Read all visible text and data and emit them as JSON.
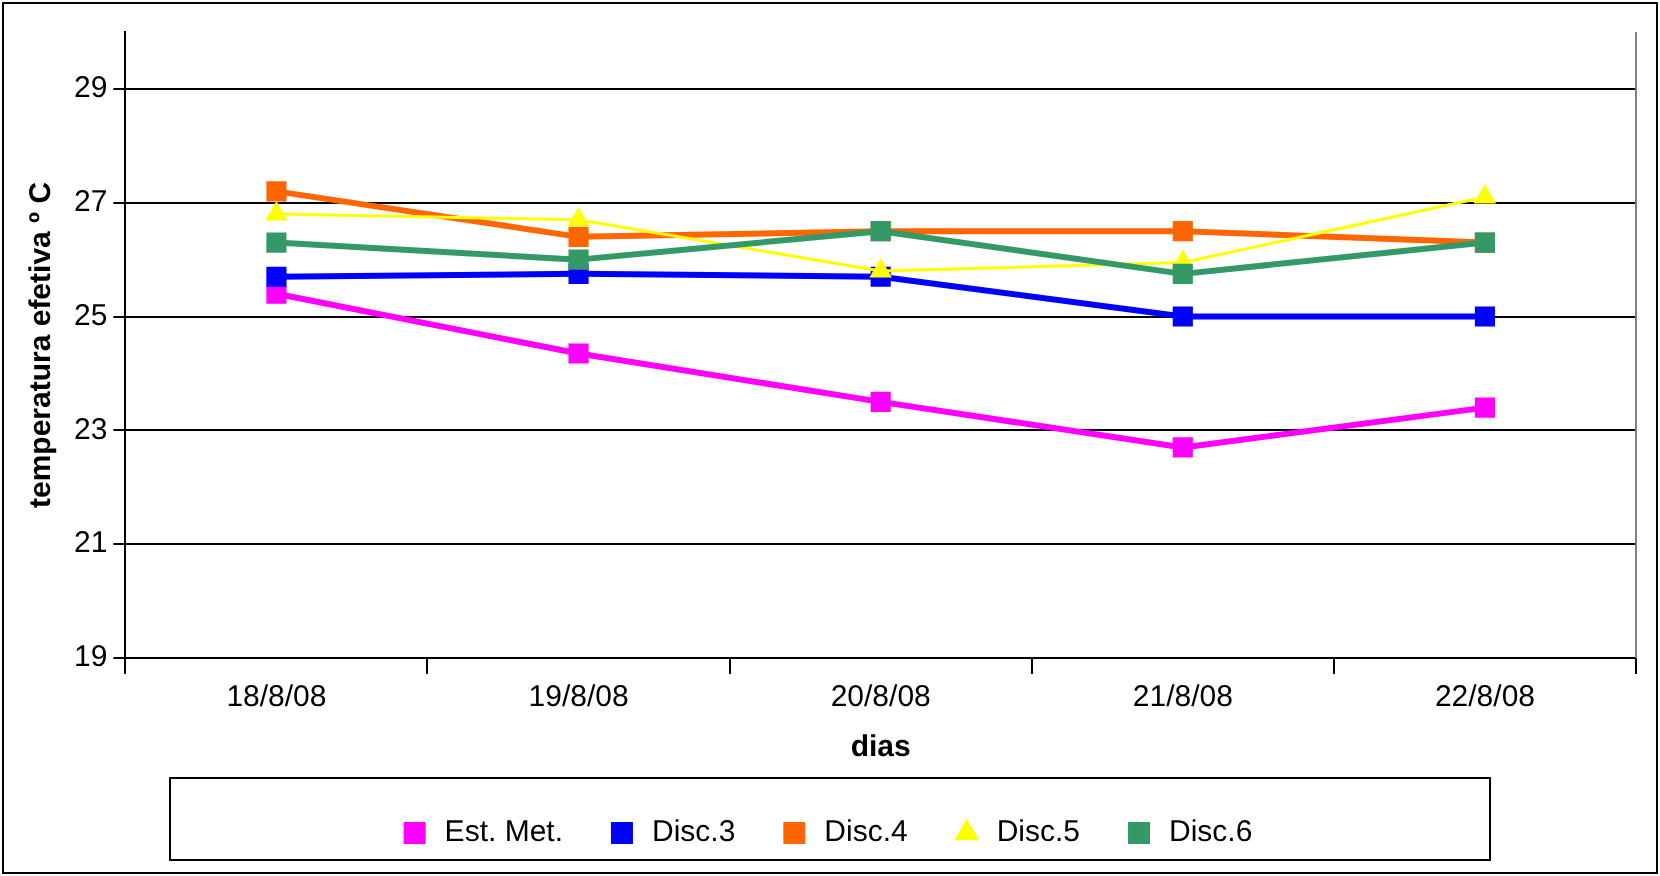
{
  "chart_data": {
    "type": "line",
    "xlabel": "dias",
    "ylabel": "temperatura efetiva º C",
    "categories": [
      "18/8/08",
      "19/8/08",
      "20/8/08",
      "21/8/08",
      "22/8/08"
    ],
    "series": [
      {
        "name": "Est. Met.",
        "color": "#ff00ff",
        "marker": "square",
        "values": [
          25.4,
          24.35,
          23.5,
          22.7,
          23.4
        ]
      },
      {
        "name": "Disc.3",
        "color": "#0000ff",
        "marker": "square",
        "values": [
          25.7,
          25.75,
          25.7,
          25.0,
          25.0
        ]
      },
      {
        "name": "Disc.4",
        "color": "#ff6600",
        "marker": "square",
        "values": [
          27.2,
          26.4,
          26.5,
          26.5,
          26.3
        ]
      },
      {
        "name": "Disc.5",
        "color": "#ffff00",
        "marker": "triangle",
        "values": [
          26.8,
          26.7,
          25.8,
          25.95,
          27.1
        ]
      },
      {
        "name": "Disc.6",
        "color": "#339966",
        "marker": "square",
        "values": [
          26.3,
          26.0,
          26.5,
          25.75,
          26.3
        ]
      }
    ],
    "ylim": [
      19,
      30
    ],
    "yticks": [
      19,
      21,
      23,
      25,
      27,
      29
    ],
    "grid": "y",
    "legend": "bottom"
  }
}
